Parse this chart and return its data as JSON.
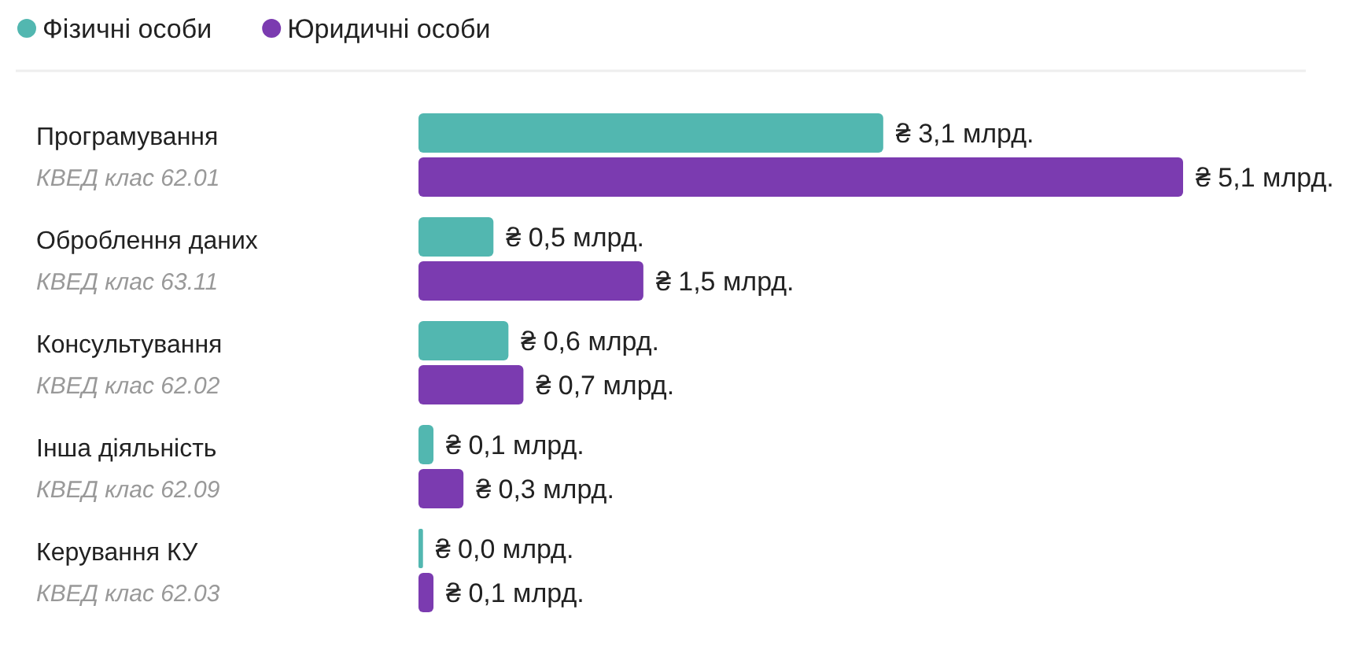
{
  "chart_data": {
    "type": "bar",
    "orientation": "horizontal",
    "legend": "top left",
    "categories": [
      "Програмування\nКВЕД клас 62.01",
      "Оброблення даних\nКВЕД клас 63.11",
      "Консультування\nКВЕД клас 62.02",
      "Інша діяльність\nКВЕД клас 62.09",
      "Керування КУ\nКВЕД клас 62.03"
    ],
    "series": [
      {
        "name": "Фізичні особи",
        "color": "#52b7b0",
        "values": [
          3.1,
          0.5,
          0.6,
          0.1,
          0.03
        ],
        "value_labels": [
          "₴ 3,1 млрд.",
          "₴ 0,5 млрд.",
          "₴ 0,6 млрд.",
          "₴ 0,1 млрд.",
          "₴ 0,0 млрд."
        ]
      },
      {
        "name": "Юридичні особи",
        "color": "#7b3bb0",
        "values": [
          5.1,
          1.5,
          0.7,
          0.3,
          0.1
        ],
        "value_labels": [
          "₴ 5,1 млрд.",
          "₴ 1,5 млрд.",
          "₴ 0,7 млрд.",
          "₴ 0,3 млрд.",
          "₴ 0,1 млрд."
        ]
      }
    ]
  }
}
